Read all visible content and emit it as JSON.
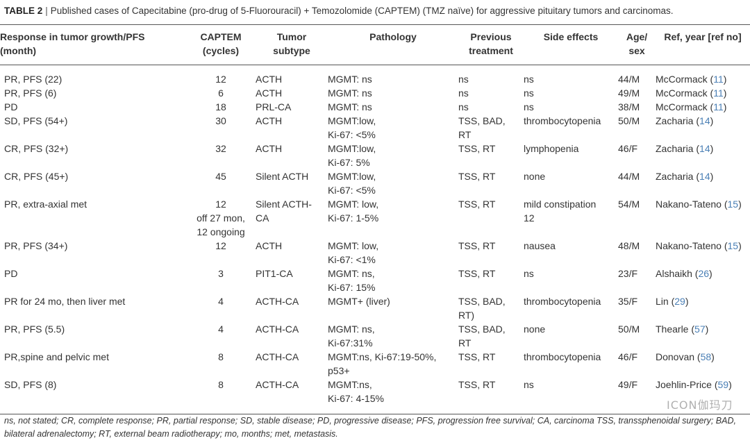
{
  "caption": {
    "label": "TABLE 2",
    "text": "Published cases of Capecitabine (pro-drug of 5-Fluorouracil) + Temozolomide (CAPTEM) (TMZ naïve) for aggressive pituitary tumors and carcinomas."
  },
  "headers": {
    "response": "Response in tumor growth/PFS\n(month)",
    "captem": "CAPTEM\n(cycles)",
    "subtype": "Tumor\nsubtype",
    "pathology": "Pathology",
    "previous": "Previous\ntreatment",
    "side": "Side effects",
    "age": "Age/\nsex",
    "ref": "Ref, year [ref no]"
  },
  "rows": [
    {
      "response": "PR, PFS (22)",
      "captem": "12",
      "subtype": "ACTH",
      "pathology": "MGMT: ns",
      "previous": "ns",
      "side": "ns",
      "age": "44/M",
      "ref": "McCormack (",
      "refno": "11",
      "refclose": ")"
    },
    {
      "response": "PR, PFS (6)",
      "captem": "6",
      "subtype": "ACTH",
      "pathology": "MGMT: ns",
      "previous": "ns",
      "side": "ns",
      "age": "49/M",
      "ref": "McCormack (",
      "refno": "11",
      "refclose": ")"
    },
    {
      "response": "PD",
      "captem": "18",
      "subtype": "PRL-CA",
      "pathology": "MGMT: ns",
      "previous": "ns",
      "side": "ns",
      "age": "38/M",
      "ref": "McCormack (",
      "refno": "11",
      "refclose": ")"
    },
    {
      "response": "SD, PFS (54+)",
      "captem": "30",
      "subtype": "ACTH",
      "pathology": "MGMT:low,\nKi-67: <5%",
      "previous": "TSS, BAD,\nRT",
      "side": "thrombocytopenia",
      "age": "50/M",
      "ref": "Zacharia (",
      "refno": "14",
      "refclose": ")"
    },
    {
      "response": "CR, PFS (32+)",
      "captem": "32",
      "subtype": "ACTH",
      "pathology": "MGMT:low,\nKi-67: 5%",
      "previous": "TSS, RT",
      "side": "lymphopenia",
      "age": "46/F",
      "ref": "Zacharia (",
      "refno": "14",
      "refclose": ")"
    },
    {
      "response": "CR, PFS (45+)",
      "captem": "45",
      "subtype": "Silent ACTH",
      "pathology": "MGMT:low,\nKi-67: <5%",
      "previous": "TSS, RT",
      "side": "none",
      "age": "44/M",
      "ref": "Zacharia (",
      "refno": "14",
      "refclose": ")"
    },
    {
      "response": "PR, extra-axial met",
      "captem": "12\noff 27 mon,\n12 ongoing",
      "subtype": "Silent ACTH-\nCA",
      "pathology": "MGMT: low,\nKi-67: 1-5%",
      "previous": "TSS, RT",
      "side": "mild constipation\n12",
      "age": "54/M",
      "ref": "Nakano-Tateno (",
      "refno": "15",
      "refclose": ")"
    },
    {
      "response": "PR, PFS (34+)",
      "captem": "12",
      "subtype": "ACTH",
      "pathology": "MGMT: low,\nKi-67: <1%",
      "previous": "TSS, RT",
      "side": "nausea",
      "age": "48/M",
      "ref": "Nakano-Tateno (",
      "refno": "15",
      "refclose": ")"
    },
    {
      "response": "PD",
      "captem": "3",
      "subtype": "PIT1-CA",
      "pathology": "MGMT: ns,\nKi-67: 15%",
      "previous": "TSS, RT",
      "side": "ns",
      "age": "23/F",
      "ref": "Alshaikh (",
      "refno": "26",
      "refclose": ")"
    },
    {
      "response": "PR for 24 mo, then liver met",
      "captem": "4",
      "subtype": "ACTH-CA",
      "pathology": "MGMT+ (liver)",
      "previous": "TSS, BAD,\nRT)",
      "side": "thrombocytopenia",
      "age": "35/F",
      "ref": "Lin (",
      "refno": "29",
      "refclose": ")"
    },
    {
      "response": "PR, PFS (5.5)",
      "captem": "4",
      "subtype": "ACTH-CA",
      "pathology": "MGMT: ns,\nKi-67:31%",
      "previous": "TSS, BAD,\nRT",
      "side": "none",
      "age": "50/M",
      "ref": "Thearle (",
      "refno": "57",
      "refclose": ")"
    },
    {
      "response": "PR,spine and pelvic met",
      "captem": "8",
      "subtype": "ACTH-CA",
      "pathology": "MGMT:ns, Ki-67:19-50%,\np53+",
      "previous": "TSS, RT",
      "side": "thrombocytopenia",
      "age": "46/F",
      "ref": "Donovan (",
      "refno": "58",
      "refclose": ")"
    },
    {
      "response": "SD, PFS (8)",
      "captem": "8",
      "subtype": "ACTH-CA",
      "pathology": "MGMT:ns,\nKi-67: 4-15%",
      "previous": "TSS, RT",
      "side": "ns",
      "age": "49/F",
      "ref": "Joehlin-Price (",
      "refno": "59",
      "refclose": ")"
    }
  ],
  "footer": "ns, not stated; CR, complete response; PR, partial response; SD, stable disease; PD, progressive disease; PFS, progression free survival; CA, carcinoma TSS, transsphenoidal surgery; BAD, bilateral adrenalectomy; RT, external beam radiotherapy; mo, months; met, metastasis.",
  "watermark": "ICON伽玛刀",
  "colors": {
    "ref_link": "#4a7fb5"
  }
}
